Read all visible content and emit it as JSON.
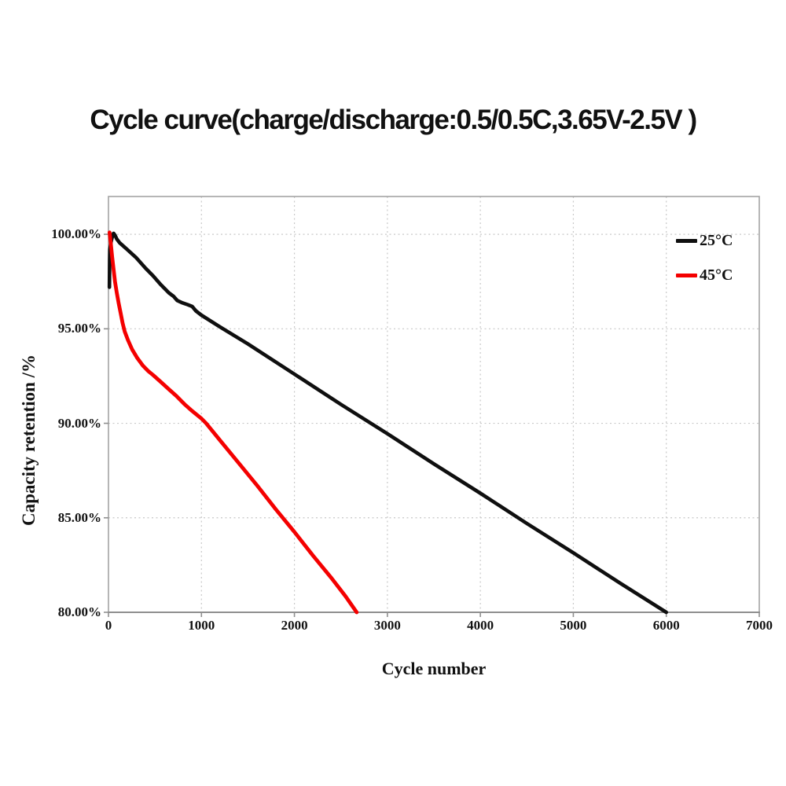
{
  "chart_data": {
    "type": "line",
    "title": "Cycle curve(charge/discharge:0.5/0.5C,3.65V-2.5V )",
    "xlabel": "Cycle number",
    "ylabel": "Capacity retention /%",
    "xlim": [
      0,
      7000
    ],
    "ylim": [
      80,
      102
    ],
    "grid": true,
    "legend_position": "top-right",
    "x_ticks": [
      {
        "value": 0,
        "label": "0"
      },
      {
        "value": 1000,
        "label": "1000"
      },
      {
        "value": 2000,
        "label": "2000"
      },
      {
        "value": 3000,
        "label": "3000"
      },
      {
        "value": 4000,
        "label": "4000"
      },
      {
        "value": 5000,
        "label": "5000"
      },
      {
        "value": 6000,
        "label": "6000"
      },
      {
        "value": 7000,
        "label": "7000"
      }
    ],
    "y_ticks": [
      {
        "value": 100,
        "label": "100.00%"
      },
      {
        "value": 95,
        "label": "95.00%"
      },
      {
        "value": 90,
        "label": "90.00%"
      },
      {
        "value": 85,
        "label": "85.00%"
      },
      {
        "value": 80,
        "label": "80.00%"
      }
    ],
    "x_gridlines": [
      1000,
      2000,
      3000,
      4000,
      5000,
      6000
    ],
    "y_gridlines": [
      85,
      90,
      95,
      100
    ],
    "styles": {
      "background": "#ffffff",
      "grid_color": "#c8c8c8",
      "border_color": "#a3a3a3",
      "axis_color": "#8f8f8f",
      "text_color": "#111111"
    },
    "series": [
      {
        "name": "25°C",
        "color": "#0f0f0f",
        "line_width": 4.6,
        "points": [
          [
            10,
            97.2
          ],
          [
            13,
            98.6
          ],
          [
            15,
            99.2
          ],
          [
            28,
            99.6
          ],
          [
            42,
            99.9
          ],
          [
            55,
            100.05
          ],
          [
            70,
            99.95
          ],
          [
            90,
            99.75
          ],
          [
            120,
            99.55
          ],
          [
            200,
            99.2
          ],
          [
            300,
            98.75
          ],
          [
            400,
            98.2
          ],
          [
            480,
            97.8
          ],
          [
            560,
            97.35
          ],
          [
            650,
            96.9
          ],
          [
            700,
            96.72
          ],
          [
            740,
            96.5
          ],
          [
            790,
            96.38
          ],
          [
            850,
            96.28
          ],
          [
            900,
            96.18
          ],
          [
            940,
            95.95
          ],
          [
            1000,
            95.72
          ],
          [
            1200,
            95.1
          ],
          [
            1500,
            94.2
          ],
          [
            2000,
            92.6
          ],
          [
            2500,
            91.0
          ],
          [
            3000,
            89.45
          ],
          [
            3500,
            87.85
          ],
          [
            4000,
            86.3
          ],
          [
            4500,
            84.7
          ],
          [
            5000,
            83.15
          ],
          [
            5500,
            81.55
          ],
          [
            6000,
            80.0
          ]
        ]
      },
      {
        "name": "45°C",
        "color": "#f40000",
        "line_width": 4.8,
        "points": [
          [
            12,
            100.1
          ],
          [
            25,
            99.5
          ],
          [
            40,
            98.8
          ],
          [
            55,
            98.15
          ],
          [
            70,
            97.5
          ],
          [
            90,
            96.9
          ],
          [
            110,
            96.35
          ],
          [
            130,
            95.85
          ],
          [
            152,
            95.3
          ],
          [
            175,
            94.85
          ],
          [
            210,
            94.4
          ],
          [
            255,
            93.9
          ],
          [
            310,
            93.45
          ],
          [
            370,
            93.05
          ],
          [
            430,
            92.75
          ],
          [
            480,
            92.55
          ],
          [
            560,
            92.2
          ],
          [
            650,
            91.8
          ],
          [
            730,
            91.45
          ],
          [
            820,
            91.0
          ],
          [
            900,
            90.65
          ],
          [
            1000,
            90.25
          ],
          [
            1050,
            90.0
          ],
          [
            1200,
            89.1
          ],
          [
            1400,
            87.9
          ],
          [
            1600,
            86.7
          ],
          [
            1800,
            85.45
          ],
          [
            2000,
            84.25
          ],
          [
            2200,
            83.0
          ],
          [
            2400,
            81.8
          ],
          [
            2550,
            80.85
          ],
          [
            2670,
            80.0
          ]
        ]
      }
    ]
  }
}
